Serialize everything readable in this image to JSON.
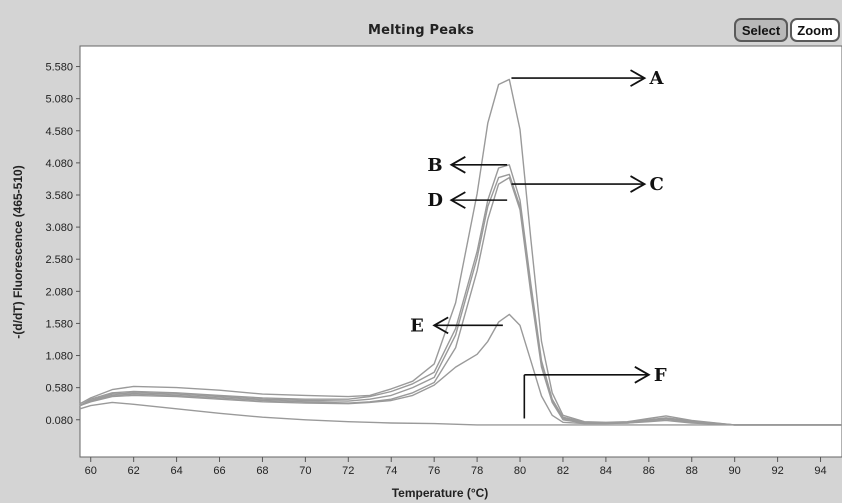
{
  "toolbar": {
    "select_label": "Select",
    "zoom_label": "Zoom"
  },
  "chart_data": {
    "type": "line",
    "title": "Melting Peaks",
    "xlabel": "Temperature (°C)",
    "ylabel": "-(d/dT) Fluorescence (465-510)",
    "xlim": [
      59.5,
      95
    ],
    "ylim": [
      -0.5,
      5.9
    ],
    "x_ticks": [
      60,
      62,
      64,
      66,
      68,
      70,
      72,
      74,
      76,
      78,
      80,
      82,
      84,
      86,
      88,
      90,
      92,
      94
    ],
    "y_ticks": [
      0.08,
      0.58,
      1.08,
      1.58,
      2.08,
      2.58,
      3.08,
      3.58,
      4.08,
      4.58,
      5.08,
      5.58
    ],
    "y_tick_labels": [
      "0.080",
      "0.580",
      "1.080",
      "1.580",
      "2.080",
      "2.580",
      "3.080",
      "3.580",
      "4.080",
      "4.580",
      "5.080",
      "5.580"
    ],
    "grid": false,
    "series": [
      {
        "label": "A",
        "x": [
          59.5,
          60,
          61,
          62,
          64,
          66,
          68,
          70,
          72,
          73,
          74,
          75,
          76,
          77,
          78,
          78.5,
          79,
          79.5,
          80,
          80.5,
          81,
          81.5,
          82,
          83,
          84,
          85,
          86,
          86.8,
          88,
          90,
          95
        ],
        "y": [
          0.33,
          0.42,
          0.55,
          0.6,
          0.58,
          0.54,
          0.48,
          0.46,
          0.44,
          0.46,
          0.56,
          0.68,
          0.95,
          1.9,
          3.6,
          4.7,
          5.3,
          5.38,
          4.6,
          2.9,
          1.3,
          0.5,
          0.15,
          0.05,
          0.04,
          0.05,
          0.1,
          0.14,
          0.07,
          0.0,
          0.0
        ]
      },
      {
        "label": "B",
        "x": [
          59.5,
          60,
          61,
          62,
          64,
          66,
          68,
          70,
          72,
          73,
          74,
          75,
          76,
          77,
          78,
          78.5,
          79,
          79.5,
          80,
          80.5,
          81,
          81.5,
          82,
          83,
          84,
          85,
          86,
          86.8,
          88,
          90,
          95
        ],
        "y": [
          0.3,
          0.4,
          0.5,
          0.52,
          0.5,
          0.46,
          0.42,
          0.4,
          0.4,
          0.44,
          0.52,
          0.64,
          0.82,
          1.5,
          2.7,
          3.5,
          4.0,
          4.05,
          3.5,
          2.2,
          1.0,
          0.4,
          0.12,
          0.04,
          0.03,
          0.04,
          0.08,
          0.11,
          0.06,
          0.0,
          0.0
        ]
      },
      {
        "label": "C",
        "x": [
          59.5,
          60,
          61,
          62,
          64,
          66,
          68,
          70,
          72,
          73,
          74,
          75,
          76,
          77,
          78,
          78.5,
          79,
          79.5,
          80,
          80.5,
          81,
          81.5,
          82,
          83,
          84,
          85,
          86,
          86.8,
          88,
          90,
          95
        ],
        "y": [
          0.3,
          0.38,
          0.48,
          0.5,
          0.48,
          0.44,
          0.4,
          0.38,
          0.37,
          0.4,
          0.46,
          0.58,
          0.74,
          1.4,
          2.6,
          3.4,
          3.85,
          3.9,
          3.4,
          2.1,
          0.95,
          0.38,
          0.1,
          0.04,
          0.03,
          0.04,
          0.07,
          0.1,
          0.05,
          0.0,
          0.0
        ]
      },
      {
        "label": "D",
        "x": [
          59.5,
          60,
          61,
          62,
          64,
          66,
          68,
          70,
          72,
          73,
          74,
          75,
          76,
          77,
          78,
          78.5,
          79,
          79.5,
          80,
          80.5,
          81,
          81.5,
          82,
          83,
          84,
          85,
          86,
          86.8,
          88,
          90,
          95
        ],
        "y": [
          0.3,
          0.37,
          0.46,
          0.48,
          0.46,
          0.42,
          0.38,
          0.36,
          0.34,
          0.36,
          0.4,
          0.5,
          0.66,
          1.2,
          2.4,
          3.2,
          3.75,
          3.85,
          3.35,
          2.05,
          0.9,
          0.35,
          0.08,
          0.03,
          0.03,
          0.03,
          0.06,
          0.09,
          0.04,
          0.0,
          0.0
        ]
      },
      {
        "label": "E",
        "x": [
          59.5,
          60,
          61,
          62,
          64,
          66,
          68,
          70,
          72,
          73,
          74,
          75,
          76,
          77,
          78,
          78.5,
          79,
          79.5,
          80,
          80.5,
          81,
          81.5,
          82,
          83,
          84,
          85,
          86,
          86.8,
          88,
          90,
          95
        ],
        "y": [
          0.3,
          0.36,
          0.44,
          0.46,
          0.44,
          0.4,
          0.36,
          0.34,
          0.33,
          0.35,
          0.38,
          0.46,
          0.62,
          0.9,
          1.1,
          1.3,
          1.6,
          1.72,
          1.55,
          1.0,
          0.45,
          0.15,
          0.04,
          0.02,
          0.02,
          0.03,
          0.05,
          0.07,
          0.03,
          0.0,
          0.0
        ]
      },
      {
        "label": "F",
        "x": [
          59.5,
          60,
          61,
          62,
          64,
          66,
          68,
          70,
          72,
          74,
          76,
          78,
          80,
          82,
          84,
          86,
          88,
          90,
          95
        ],
        "y": [
          0.25,
          0.3,
          0.35,
          0.32,
          0.25,
          0.18,
          0.12,
          0.08,
          0.05,
          0.03,
          0.02,
          0.0,
          0.0,
          0.0,
          0.0,
          0.0,
          0.0,
          0.0,
          0.0
        ]
      }
    ],
    "annotations": [
      {
        "label": "A",
        "x": 86.5,
        "y": 5.4
      },
      {
        "label": "B",
        "x": 75.8,
        "y": 4.05
      },
      {
        "label": "C",
        "x": 86.5,
        "y": 3.75
      },
      {
        "label": "D",
        "x": 75.8,
        "y": 3.5
      },
      {
        "label": "E",
        "x": 75.0,
        "y": 1.55
      },
      {
        "label": "F",
        "x": 86.8,
        "y": 0.78
      }
    ]
  }
}
